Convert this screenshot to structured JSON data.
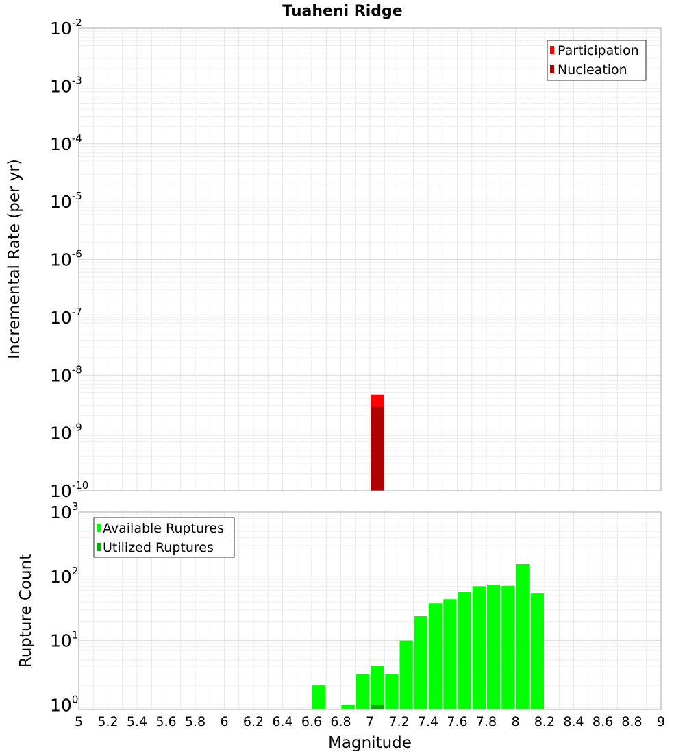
{
  "chart_data": [
    {
      "type": "bar",
      "title": "Tuaheni Ridge",
      "ylabel": "Incremental Rate (per yr)",
      "xlabel": "",
      "y_scale": "log",
      "ylim": [
        1e-10,
        0.01
      ],
      "xlim": [
        5,
        9
      ],
      "y_ticks": [
        {
          "value": 1e-10,
          "base": "10",
          "exp": "-10"
        },
        {
          "value": 1e-09,
          "base": "10",
          "exp": "-9"
        },
        {
          "value": 1e-08,
          "base": "10",
          "exp": "-8"
        },
        {
          "value": 1e-07,
          "base": "10",
          "exp": "-7"
        },
        {
          "value": 1e-06,
          "base": "10",
          "exp": "-6"
        },
        {
          "value": 1e-05,
          "base": "10",
          "exp": "-5"
        },
        {
          "value": 0.0001,
          "base": "10",
          "exp": "-4"
        },
        {
          "value": 0.001,
          "base": "10",
          "exp": "-3"
        },
        {
          "value": 0.01,
          "base": "10",
          "exp": "-2"
        }
      ],
      "legend_position": "top-right",
      "grid": true,
      "bar_width": 0.1,
      "series": [
        {
          "name": "Participation",
          "color": "#ff0000",
          "points": [
            {
              "x": 7.05,
              "y": 4.6e-09
            }
          ]
        },
        {
          "name": "Nucleation",
          "color": "#b00000",
          "points": [
            {
              "x": 7.05,
              "y": 2.8e-09
            }
          ]
        }
      ]
    },
    {
      "type": "bar",
      "title": "",
      "ylabel": "Rupture Count",
      "xlabel": "Magnitude",
      "y_scale": "log",
      "ylim": [
        0.85,
        1000
      ],
      "xlim": [
        5,
        9
      ],
      "x_ticks": [
        "5",
        "5.2",
        "5.4",
        "5.6",
        "5.8",
        "6",
        "6.2",
        "6.4",
        "6.6",
        "6.8",
        "7",
        "7.2",
        "7.4",
        "7.6",
        "7.8",
        "8",
        "8.2",
        "8.4",
        "8.6",
        "8.8",
        "9"
      ],
      "y_ticks": [
        {
          "value": 1,
          "base": "10",
          "exp": "0"
        },
        {
          "value": 10,
          "base": "10",
          "exp": "1"
        },
        {
          "value": 100,
          "base": "10",
          "exp": "2"
        },
        {
          "value": 1000,
          "base": "10",
          "exp": "3"
        }
      ],
      "legend_position": "top-left",
      "grid": true,
      "bar_width": 0.1,
      "series": [
        {
          "name": "Available Ruptures",
          "color": "#00ff00",
          "points": [
            {
              "x": 6.65,
              "y": 2
            },
            {
              "x": 6.85,
              "y": 1
            },
            {
              "x": 6.95,
              "y": 3
            },
            {
              "x": 7.05,
              "y": 4
            },
            {
              "x": 7.15,
              "y": 3
            },
            {
              "x": 7.25,
              "y": 10
            },
            {
              "x": 7.35,
              "y": 24
            },
            {
              "x": 7.45,
              "y": 38
            },
            {
              "x": 7.55,
              "y": 44
            },
            {
              "x": 7.65,
              "y": 57
            },
            {
              "x": 7.75,
              "y": 70
            },
            {
              "x": 7.85,
              "y": 74
            },
            {
              "x": 7.95,
              "y": 71
            },
            {
              "x": 8.05,
              "y": 155
            },
            {
              "x": 8.15,
              "y": 55
            }
          ]
        },
        {
          "name": "Utilized Ruptures",
          "color": "#00b000",
          "points": [
            {
              "x": 7.05,
              "y": 1
            }
          ]
        }
      ]
    }
  ]
}
